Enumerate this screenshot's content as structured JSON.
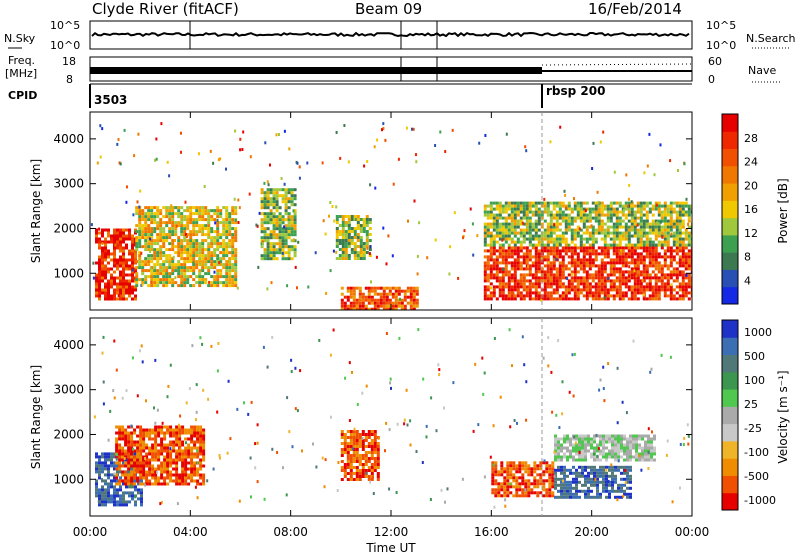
{
  "header": {
    "station": "Clyde River (fitACF)",
    "beam": "Beam 09",
    "date": "16/Feb/2014"
  },
  "summary": {
    "nsky_label": "N.Sky",
    "nsky_ticks": [
      "10^5",
      "10^0"
    ],
    "nsearch_label": "N.Search",
    "nsearch_ticks": [
      "10^5",
      "10^0"
    ],
    "freq_label": "Freq.",
    "freq_unit": "[MHz]",
    "freq_ticks": [
      "18",
      "8"
    ],
    "nave_label": "Nave",
    "nave_ticks": [
      "60",
      "0"
    ],
    "cpid_label": "CPID",
    "cpid_values": [
      "3503",
      "rbsp 200"
    ]
  },
  "colors": {
    "power": [
      "#1428e6",
      "#2850b4",
      "#3c7850",
      "#3ca050",
      "#a0c83c",
      "#f0c800",
      "#f0a000",
      "#f07800",
      "#f05000",
      "#f02800",
      "#e60000"
    ],
    "velocity": [
      "#e60000",
      "#f05000",
      "#f08c00",
      "#f0b428",
      "#c8c8c8",
      "#aaaaaa",
      "#50c850",
      "#3c9650",
      "#507878",
      "#3c6eb4",
      "#1e32c8"
    ]
  },
  "chart_data": [
    {
      "type": "heatmap",
      "panel": "power",
      "title": "",
      "xlabel": "",
      "ylabel": "Slant Range [km]",
      "xlim": [
        "00:00",
        "24:00"
      ],
      "ylim": [
        180,
        4600
      ],
      "x_ticks": [],
      "y_ticks": [
        "1000",
        "2000",
        "3000",
        "4000"
      ],
      "colorbar": {
        "label": "Power [dB]",
        "range": [
          0,
          32
        ],
        "ticks": [
          "4",
          "8",
          "12",
          "16",
          "20",
          "24",
          "28"
        ]
      },
      "regions": [
        {
          "t_start": 0.2,
          "t_end": 1.8,
          "range_low": 400,
          "range_high": 2000,
          "value": 28
        },
        {
          "t_start": 1.8,
          "t_end": 5.8,
          "range_low": 700,
          "range_high": 2500,
          "value": 16
        },
        {
          "t_start": 6.8,
          "t_end": 8.2,
          "range_low": 1300,
          "range_high": 2900,
          "value": 12
        },
        {
          "t_start": 9.8,
          "t_end": 11.2,
          "range_low": 1300,
          "range_high": 2300,
          "value": 12
        },
        {
          "t_start": 10.0,
          "t_end": 13.0,
          "range_low": 200,
          "range_high": 700,
          "value": 24
        },
        {
          "t_start": 15.7,
          "t_end": 24.0,
          "range_low": 400,
          "range_high": 1600,
          "value": 28
        },
        {
          "t_start": 15.7,
          "t_end": 24.0,
          "range_low": 1600,
          "range_high": 2600,
          "value": 12
        }
      ]
    },
    {
      "type": "heatmap",
      "panel": "velocity",
      "title": "",
      "xlabel": "Time UT",
      "ylabel": "Slant Range [km]",
      "xlim": [
        "00:00",
        "24:00"
      ],
      "ylim": [
        180,
        4600
      ],
      "x_ticks": [
        "00:00",
        "04:00",
        "08:00",
        "12:00",
        "16:00",
        "20:00",
        "00:00"
      ],
      "y_ticks": [
        "1000",
        "2000",
        "3000",
        "4000"
      ],
      "colorbar": {
        "label": "Velocity [m s⁻¹]",
        "ticks": [
          "1000",
          "500",
          "100",
          "25",
          "-25",
          "-100",
          "-500",
          "-1000"
        ]
      },
      "regions": [
        {
          "t_start": 0.2,
          "t_end": 2.0,
          "range_low": 400,
          "range_high": 1600,
          "value": 500
        },
        {
          "t_start": 1.0,
          "t_end": 4.5,
          "range_low": 900,
          "range_high": 2200,
          "value": -100
        },
        {
          "t_start": 10.0,
          "t_end": 11.5,
          "range_low": 1000,
          "range_high": 2100,
          "value": -100
        },
        {
          "t_start": 16.0,
          "t_end": 18.5,
          "range_low": 600,
          "range_high": 1400,
          "value": -100
        },
        {
          "t_start": 18.5,
          "t_end": 21.5,
          "range_low": 600,
          "range_high": 1300,
          "value": 500
        },
        {
          "t_start": 18.5,
          "t_end": 22.5,
          "range_low": 1400,
          "range_high": 2000,
          "value": 0
        }
      ]
    }
  ]
}
